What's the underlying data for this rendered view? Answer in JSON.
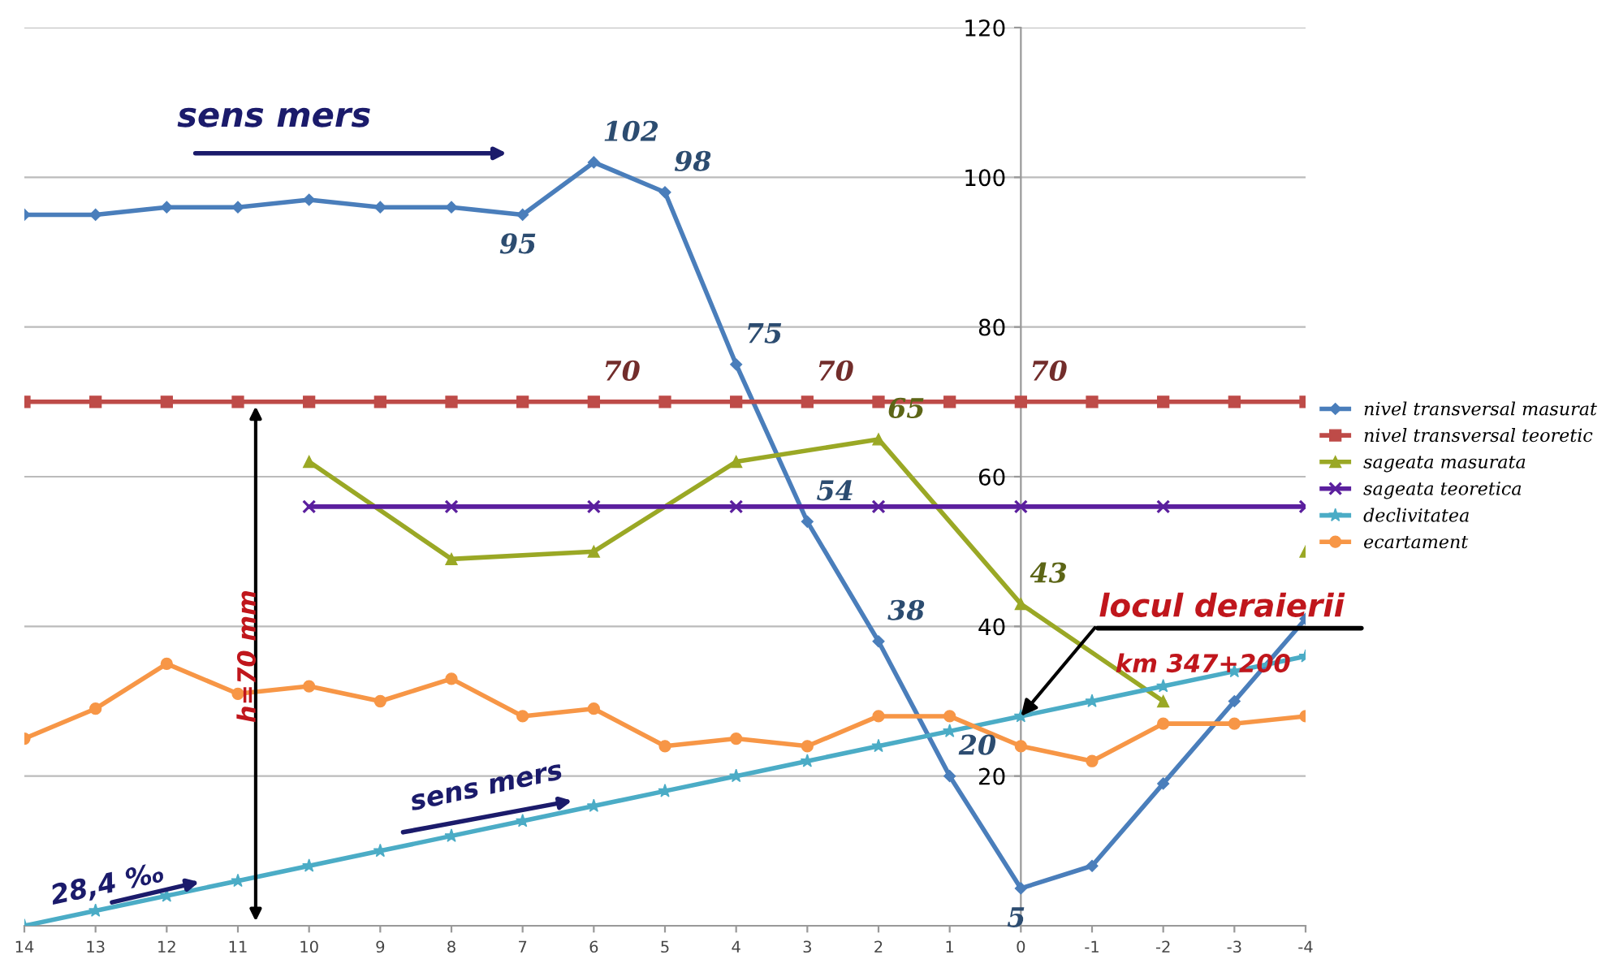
{
  "chart_data": {
    "type": "line",
    "x": [
      14,
      13,
      12,
      11,
      10,
      9,
      8,
      7,
      6,
      5,
      4,
      3,
      2,
      1,
      0,
      -1,
      -2,
      -3,
      -4
    ],
    "xlim": [
      14,
      -4
    ],
    "xticks": [
      14,
      13,
      12,
      11,
      10,
      9,
      8,
      7,
      6,
      5,
      4,
      3,
      2,
      1,
      0,
      -1,
      -2,
      -3,
      -4
    ],
    "ylim": [
      0,
      120
    ],
    "yticks": [
      {
        "value": 0,
        "label": null
      },
      20,
      40,
      60,
      80,
      100,
      120
    ],
    "grid": "y",
    "legend": "right",
    "series": [
      {
        "name": "nivel transversal masurat",
        "color": "#4a7ebb",
        "marker": "diamond",
        "values": [
          95,
          95,
          96,
          96,
          97,
          96,
          96,
          95,
          102,
          98,
          75,
          54,
          38,
          20,
          5,
          8,
          19,
          30,
          41
        ],
        "value_labels": [
          null,
          null,
          null,
          null,
          null,
          null,
          null,
          "95",
          "102",
          "98",
          "75",
          "54",
          "38",
          "20",
          "5",
          null,
          null,
          null,
          null
        ]
      },
      {
        "name": "nivel transversal teoretic",
        "color": "#be4b48",
        "marker": "square",
        "values": [
          70,
          70,
          70,
          70,
          70,
          70,
          70,
          70,
          70,
          70,
          70,
          70,
          70,
          70,
          70,
          70,
          70,
          70,
          70
        ],
        "value_labels": [
          null,
          null,
          null,
          null,
          null,
          null,
          null,
          null,
          "70",
          null,
          null,
          "70",
          null,
          null,
          "70",
          null,
          null,
          null,
          null
        ]
      },
      {
        "name": "sageata masurata",
        "color": "#9aa825",
        "marker": "triangle",
        "x": [
          10,
          8,
          6,
          4,
          2,
          0,
          -2,
          -3,
          -4
        ],
        "values": [
          62,
          49,
          50,
          62,
          65,
          43,
          30,
          null,
          50
        ],
        "value_labels": [
          null,
          null,
          null,
          null,
          "65",
          "43",
          null,
          null,
          null
        ]
      },
      {
        "name": "sageata teoretica",
        "color": "#5b1f9e",
        "marker": "cross",
        "x": [
          10,
          8,
          6,
          4,
          2,
          0,
          -2,
          -4
        ],
        "values": [
          56,
          56,
          56,
          56,
          56,
          56,
          56,
          56
        ]
      },
      {
        "name": "declivitatea",
        "color": "#4bacc6",
        "marker": "star",
        "values": [
          0,
          2,
          4,
          6,
          8,
          10,
          12,
          14,
          16,
          18,
          20,
          22,
          24,
          26,
          28,
          30,
          32,
          34,
          36
        ]
      },
      {
        "name": "ecartament",
        "color": "#f79646",
        "marker": "circle",
        "values": [
          25,
          29,
          35,
          31,
          32,
          30,
          33,
          28,
          29,
          24,
          25,
          24,
          28,
          28,
          24,
          22,
          27,
          27,
          28
        ]
      }
    ],
    "annotations": [
      "sens mers",
      {
        "text": "sens mers",
        "x": 7,
        "y": 14
      },
      "28,4 ‰",
      "h=70 mm",
      {
        "text": "locul deraierii",
        "x": 0,
        "y": 28
      },
      "km 347+200"
    ]
  }
}
